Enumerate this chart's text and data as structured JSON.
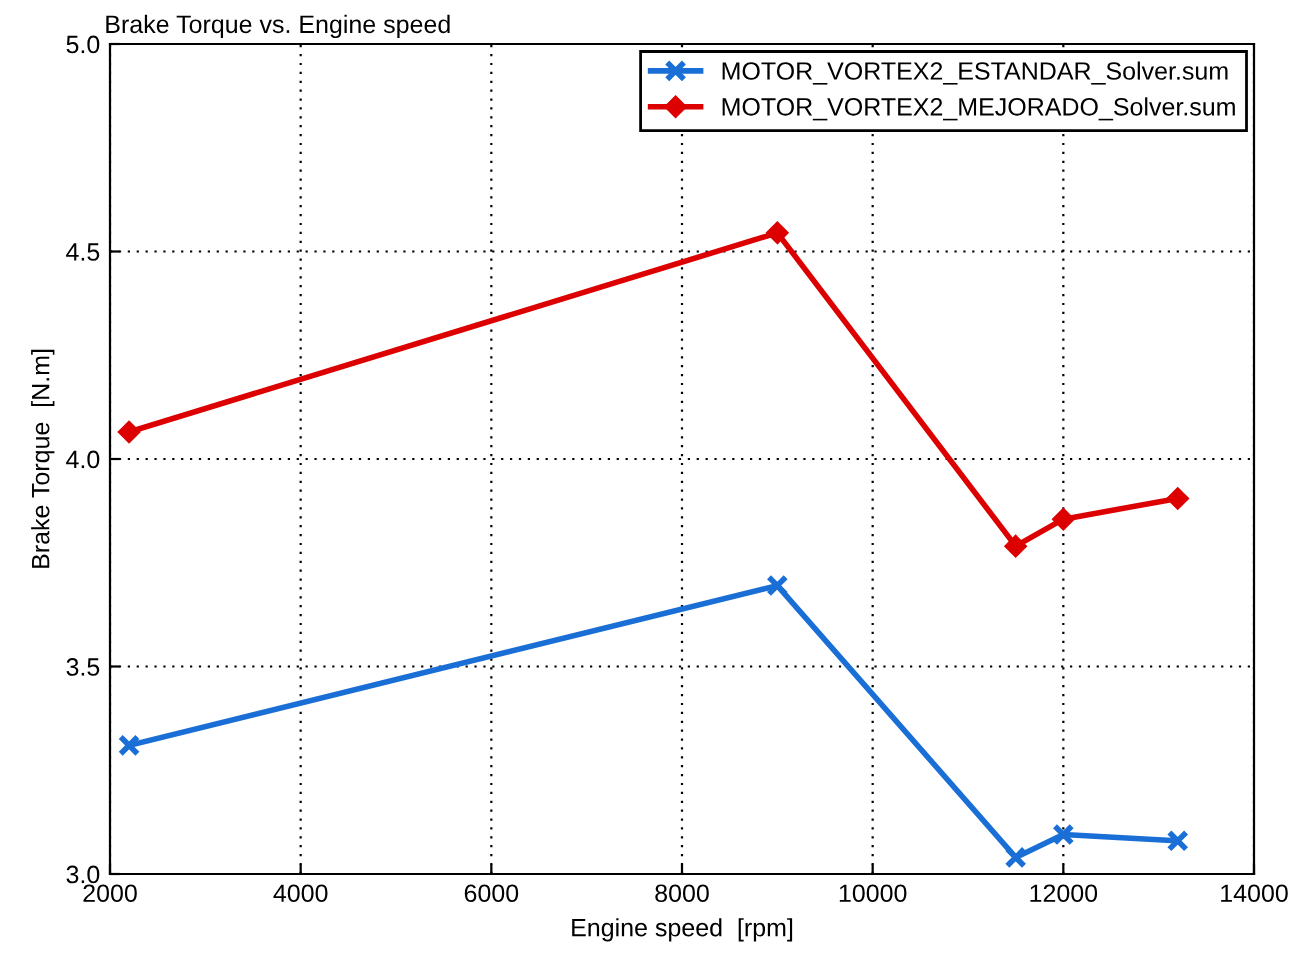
{
  "chart_data": {
    "type": "line",
    "title": "Brake Torque vs. Engine speed",
    "xlabel": "Engine speed  [rpm]",
    "ylabel": "Brake Torque  [N.m]",
    "xlim": [
      2000,
      14000
    ],
    "xticks": [
      2000,
      4000,
      6000,
      8000,
      10000,
      12000,
      14000
    ],
    "ylim": [
      3.0,
      5.0
    ],
    "yticks": [
      {
        "value": 3.0,
        "label": "3.0"
      },
      {
        "value": 3.5,
        "label": "3.5"
      },
      {
        "value": 4.0,
        "label": "4.0"
      },
      {
        "value": 4.5,
        "label": "4.5"
      },
      {
        "value": 5.0,
        "label": "5.0"
      }
    ],
    "grid": true,
    "legend": "top right",
    "line_style": "solid",
    "series": [
      {
        "name": "MOTOR_VORTEX2_ESTANDAR_Solver.sum",
        "color": "#1a6fd6",
        "marker": "cross",
        "x": [
          2200,
          9000,
          11500,
          12000,
          13200
        ],
        "values": [
          3.31,
          3.695,
          3.04,
          3.095,
          3.08
        ]
      },
      {
        "name": "MOTOR_VORTEX2_MEJORADO_Solver.sum",
        "color": "#dd0000",
        "marker": "diamond",
        "x": [
          2200,
          9000,
          11500,
          12000,
          13200
        ],
        "values": [
          4.065,
          4.545,
          3.79,
          3.855,
          3.905
        ]
      }
    ]
  }
}
